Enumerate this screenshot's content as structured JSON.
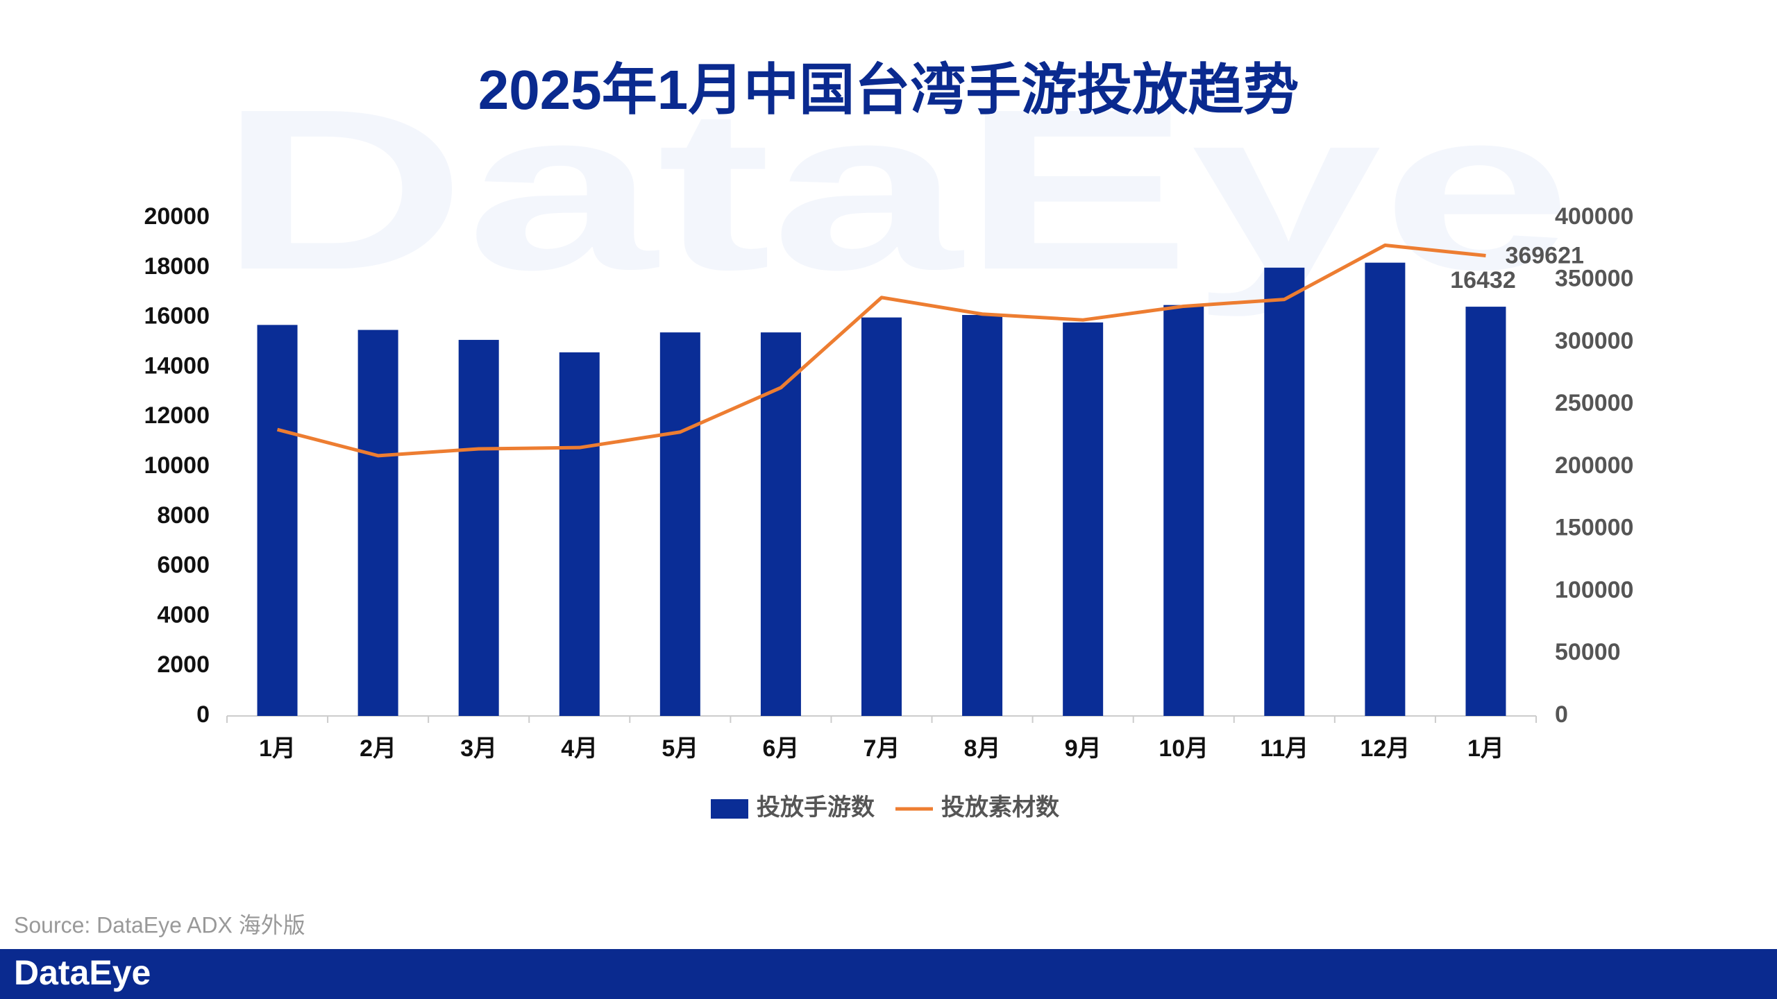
{
  "chart_data": {
    "type": "bar-line",
    "title": "2025年1月中国台湾手游投放趋势",
    "categories": [
      "1月",
      "2月",
      "3月",
      "4月",
      "5月",
      "6月",
      "7月",
      "8月",
      "9月",
      "10月",
      "11月",
      "12月",
      "1月"
    ],
    "series": [
      {
        "name": "投放手游数",
        "type": "bar",
        "color": "#0a2d96",
        "values": [
          15700,
          15500,
          15100,
          14600,
          15400,
          15400,
          16000,
          16100,
          15800,
          16500,
          18000,
          18200,
          16432
        ]
      },
      {
        "name": "投放素材数",
        "type": "line",
        "axis": "y2",
        "color": "#ed7d31",
        "values": [
          230000,
          209000,
          214500,
          215500,
          228000,
          263600,
          336000,
          322700,
          318000,
          329000,
          334500,
          378000,
          369621
        ]
      }
    ],
    "ylim": [
      0,
      20000
    ],
    "yticks": [
      0,
      2000,
      4000,
      6000,
      8000,
      10000,
      12000,
      14000,
      16000,
      18000,
      20000
    ],
    "y2lim": [
      0,
      400000
    ],
    "y2ticks": [
      0,
      50000,
      100000,
      150000,
      200000,
      250000,
      300000,
      350000,
      400000
    ],
    "grid": false,
    "legend": "bottom",
    "watermark": "DataEye",
    "source": "Source: DataEye ADX 海外版",
    "brand": "DataEye"
  }
}
